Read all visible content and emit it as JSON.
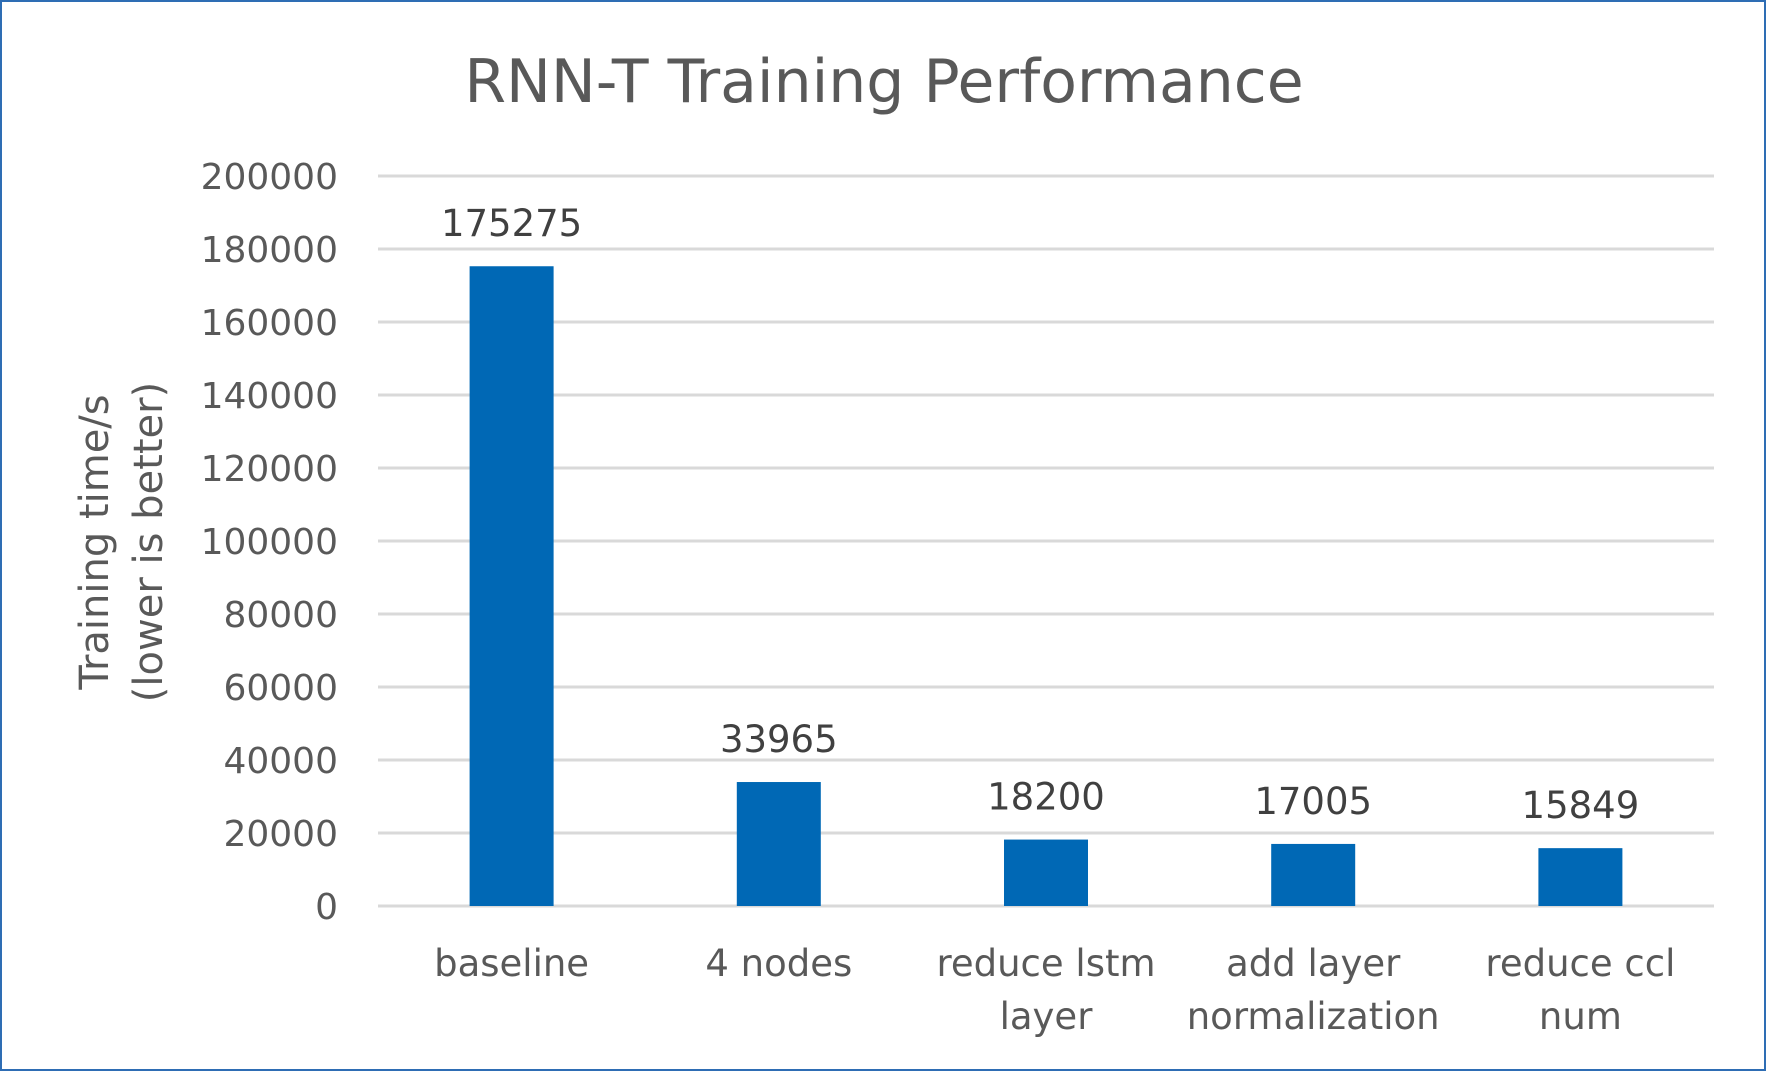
{
  "chart_data": {
    "type": "bar",
    "title": "RNN-T Training Performance",
    "ylabel": [
      "Training time/s",
      "(lower is better)"
    ],
    "xlabel": "",
    "categories": [
      [
        "baseline"
      ],
      [
        "4 nodes"
      ],
      [
        "reduce lstm",
        "layer"
      ],
      [
        "add layer",
        "normalization"
      ],
      [
        "reduce ccl",
        "num"
      ]
    ],
    "values": [
      175275,
      33965,
      18200,
      17005,
      15849
    ],
    "data_labels": [
      "175275",
      "33965",
      "18200",
      "17005",
      "15849"
    ],
    "ylim": [
      0,
      200000
    ],
    "yticks": [
      0,
      20000,
      40000,
      60000,
      80000,
      100000,
      120000,
      140000,
      160000,
      180000,
      200000
    ],
    "ytick_labels": [
      "0",
      "20000",
      "40000",
      "60000",
      "80000",
      "100000",
      "120000",
      "140000",
      "160000",
      "180000",
      "200000"
    ],
    "grid": true,
    "legend": "none",
    "colors": {
      "bar": "#0068b5",
      "frame": "#2e6db4",
      "grid": "#d9d9d9",
      "text": "#595959",
      "data_label": "#404040"
    }
  }
}
